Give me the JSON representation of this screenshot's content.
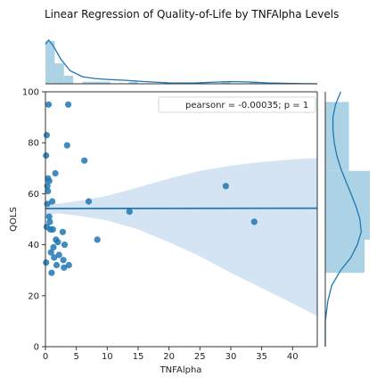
{
  "chart_data": {
    "type": "scatter",
    "title": "Linear Regression of Quality-of-Life by TNFAlpha Levels",
    "xlabel": "TNFAlpha",
    "ylabel": "QOLS",
    "xlim": [
      0,
      44
    ],
    "ylim": [
      0,
      100
    ],
    "xticks": [
      0,
      5,
      10,
      15,
      20,
      25,
      30,
      35,
      40
    ],
    "yticks": [
      0,
      20,
      40,
      60,
      80,
      100
    ],
    "grid": false,
    "legend": {
      "text": "pearsonr = -0.00035; p = 1",
      "position": "top-right"
    },
    "colors": {
      "points": "#1f77b4",
      "fit_line": "#1f77b4",
      "ci_band": "#c6dbef",
      "hist_fill": "#9ecae1"
    },
    "points": [
      {
        "x": 0.1,
        "y": 75
      },
      {
        "x": 0.2,
        "y": 83
      },
      {
        "x": 0.3,
        "y": 63
      },
      {
        "x": 0.3,
        "y": 56
      },
      {
        "x": 0.2,
        "y": 47
      },
      {
        "x": 0.1,
        "y": 33
      },
      {
        "x": 0.4,
        "y": 66
      },
      {
        "x": 0.4,
        "y": 61
      },
      {
        "x": 0.5,
        "y": 95
      },
      {
        "x": 0.6,
        "y": 65
      },
      {
        "x": 0.6,
        "y": 51
      },
      {
        "x": 0.7,
        "y": 49
      },
      {
        "x": 0.8,
        "y": 46
      },
      {
        "x": 0.9,
        "y": 37
      },
      {
        "x": 1.0,
        "y": 29
      },
      {
        "x": 1.1,
        "y": 57
      },
      {
        "x": 1.2,
        "y": 46
      },
      {
        "x": 1.3,
        "y": 39
      },
      {
        "x": 1.4,
        "y": 35
      },
      {
        "x": 1.6,
        "y": 68
      },
      {
        "x": 1.7,
        "y": 42
      },
      {
        "x": 1.8,
        "y": 32
      },
      {
        "x": 2.0,
        "y": 41
      },
      {
        "x": 2.2,
        "y": 36
      },
      {
        "x": 2.8,
        "y": 45
      },
      {
        "x": 2.9,
        "y": 34
      },
      {
        "x": 3.0,
        "y": 31
      },
      {
        "x": 3.1,
        "y": 40
      },
      {
        "x": 3.5,
        "y": 79
      },
      {
        "x": 3.7,
        "y": 95
      },
      {
        "x": 3.8,
        "y": 32
      },
      {
        "x": 6.3,
        "y": 73
      },
      {
        "x": 7.0,
        "y": 57
      },
      {
        "x": 8.4,
        "y": 42
      },
      {
        "x": 13.6,
        "y": 53
      },
      {
        "x": 29.2,
        "y": 63
      },
      {
        "x": 33.8,
        "y": 49
      }
    ],
    "regression": {
      "intercept": 54.2,
      "slope": 0.003
    },
    "confidence_band": [
      {
        "x": 0,
        "lo": 51.6,
        "hi": 56.6
      },
      {
        "x": 2,
        "lo": 52.3,
        "hi": 56.1
      },
      {
        "x": 5,
        "lo": 51.5,
        "hi": 57.0
      },
      {
        "x": 10,
        "lo": 49.5,
        "hi": 59.2
      },
      {
        "x": 15,
        "lo": 46.0,
        "hi": 62.5
      },
      {
        "x": 20,
        "lo": 41.0,
        "hi": 66.0
      },
      {
        "x": 25,
        "lo": 35.5,
        "hi": 69.0
      },
      {
        "x": 30,
        "lo": 29.0,
        "hi": 71.0
      },
      {
        "x": 35,
        "lo": 23.0,
        "hi": 72.5
      },
      {
        "x": 40,
        "lo": 17.0,
        "hi": 73.5
      },
      {
        "x": 44,
        "lo": 12.0,
        "hi": 74.0
      }
    ],
    "top_histogram": {
      "bin_edges": [
        0,
        1.5,
        3,
        4.5,
        6,
        7.5,
        9,
        10.5,
        12,
        13.5,
        15,
        16.5,
        18,
        19.5,
        21,
        22.5,
        24,
        25.5,
        27,
        28.5,
        30,
        31.5,
        33,
        34.5
      ],
      "counts": [
        21,
        10,
        4,
        0,
        1,
        1,
        1,
        0,
        0,
        1,
        0,
        0,
        0,
        0,
        0,
        0,
        0,
        0,
        0,
        1,
        0,
        0,
        1
      ]
    },
    "top_kde": [
      {
        "x": 0,
        "d": 0.45
      },
      {
        "x": 0.5,
        "d": 0.5
      },
      {
        "x": 1.2,
        "d": 0.44
      },
      {
        "x": 2.5,
        "d": 0.28
      },
      {
        "x": 4,
        "d": 0.15
      },
      {
        "x": 6,
        "d": 0.08
      },
      {
        "x": 8,
        "d": 0.06
      },
      {
        "x": 10,
        "d": 0.05
      },
      {
        "x": 13,
        "d": 0.04
      },
      {
        "x": 16,
        "d": 0.025
      },
      {
        "x": 20,
        "d": 0.01
      },
      {
        "x": 24,
        "d": 0.008
      },
      {
        "x": 28,
        "d": 0.02
      },
      {
        "x": 30,
        "d": 0.025
      },
      {
        "x": 33,
        "d": 0.02
      },
      {
        "x": 36,
        "d": 0.01
      },
      {
        "x": 40,
        "d": 0.003
      },
      {
        "x": 44,
        "d": 0.0
      }
    ],
    "top_density_max": 0.55,
    "right_histogram": {
      "bin_edges": [
        29,
        42,
        69,
        96
      ],
      "counts": [
        15,
        17,
        9
      ]
    },
    "right_kde": [
      {
        "y": 0,
        "d": 0.0
      },
      {
        "y": 10,
        "d": 0.0
      },
      {
        "y": 18,
        "d": 0.002
      },
      {
        "y": 24,
        "d": 0.005
      },
      {
        "y": 30,
        "d": 0.012
      },
      {
        "y": 35,
        "d": 0.02
      },
      {
        "y": 40,
        "d": 0.025
      },
      {
        "y": 45,
        "d": 0.028
      },
      {
        "y": 50,
        "d": 0.027
      },
      {
        "y": 55,
        "d": 0.024
      },
      {
        "y": 60,
        "d": 0.02
      },
      {
        "y": 65,
        "d": 0.016
      },
      {
        "y": 70,
        "d": 0.012
      },
      {
        "y": 75,
        "d": 0.009
      },
      {
        "y": 80,
        "d": 0.007
      },
      {
        "y": 85,
        "d": 0.006
      },
      {
        "y": 90,
        "d": 0.006
      },
      {
        "y": 95,
        "d": 0.008
      },
      {
        "y": 100,
        "d": 0.012
      }
    ],
    "right_density_max": 0.032
  }
}
